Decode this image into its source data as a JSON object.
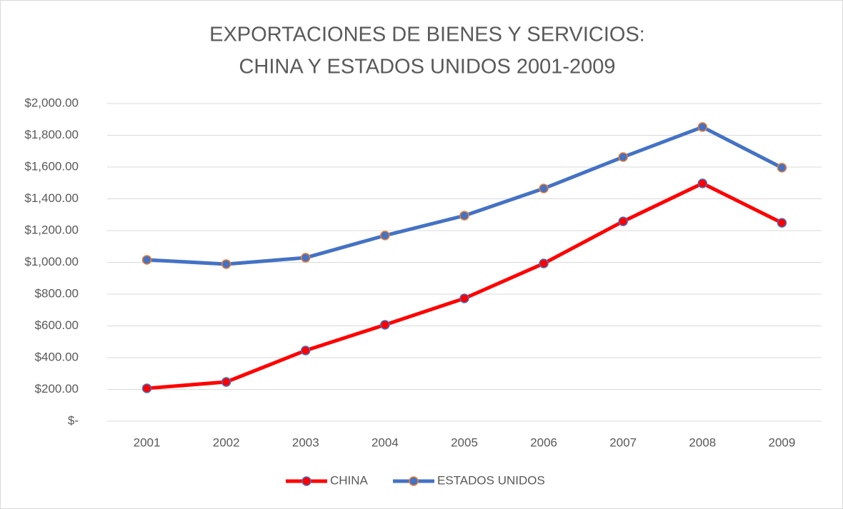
{
  "chart_data": {
    "type": "line",
    "title": [
      "EXPORTACIONES DE BIENES Y SERVICIOS:",
      "CHINA Y ESTADOS UNIDOS 2001-2009"
    ],
    "categories": [
      "2001",
      "2002",
      "2003",
      "2004",
      "2005",
      "2006",
      "2007",
      "2008",
      "2009"
    ],
    "series": [
      {
        "name": "CHINA",
        "color": "#ff0000",
        "marker_color": "#ff0000",
        "marker_edge": "#4472c4",
        "values": [
          207,
          247,
          445,
          607,
          773,
          993,
          1258,
          1497,
          1249
        ]
      },
      {
        "name": "ESTADOS UNIDOS",
        "color": "#4472c4",
        "marker_color": "#4472c4",
        "marker_edge": "#ed7d31",
        "values": [
          1016,
          989,
          1029,
          1169,
          1294,
          1465,
          1663,
          1852,
          1596
        ]
      }
    ],
    "ylim": [
      0,
      2000
    ],
    "yticks": [
      {
        "value": 0,
        "label": "$-"
      },
      {
        "value": 200,
        "label": "$200.00"
      },
      {
        "value": 400,
        "label": "$400.00"
      },
      {
        "value": 600,
        "label": "$600.00"
      },
      {
        "value": 800,
        "label": "$800.00"
      },
      {
        "value": 1000,
        "label": "$1,000.00"
      },
      {
        "value": 1200,
        "label": "$1,200.00"
      },
      {
        "value": 1400,
        "label": "$1,400.00"
      },
      {
        "value": 1600,
        "label": "$1,600.00"
      },
      {
        "value": 1800,
        "label": "$1,800.00"
      },
      {
        "value": 2000,
        "label": "$2,000.00"
      }
    ],
    "grid": true,
    "legend": "bottom"
  }
}
